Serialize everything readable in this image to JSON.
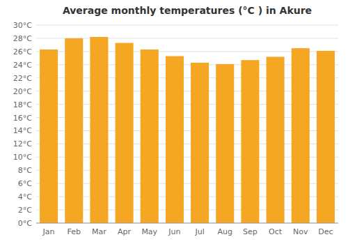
{
  "chart_data": {
    "type": "bar",
    "title": "Average monthly temperatures (°C ) in Akure",
    "categories": [
      "Jan",
      "Feb",
      "Mar",
      "Apr",
      "May",
      "Jun",
      "Jul",
      "Aug",
      "Sep",
      "Oct",
      "Nov",
      "Dec"
    ],
    "values": [
      26.3,
      28.0,
      28.2,
      27.3,
      26.3,
      25.3,
      24.3,
      24.1,
      24.7,
      25.2,
      26.5,
      26.1
    ],
    "color": "#F5A623",
    "ylim": [
      0,
      30
    ],
    "yticks": [
      {
        "value": 0,
        "label": "0°C"
      },
      {
        "value": 2,
        "label": "2°C"
      },
      {
        "value": 4,
        "label": "4°C"
      },
      {
        "value": 6,
        "label": "6°C"
      },
      {
        "value": 8,
        "label": "8°C"
      },
      {
        "value": 10,
        "label": "10°C"
      },
      {
        "value": 12,
        "label": "12°C"
      },
      {
        "value": 14,
        "label": "14°C"
      },
      {
        "value": 16,
        "label": "16°C"
      },
      {
        "value": 18,
        "label": "18°C"
      },
      {
        "value": 20,
        "label": "20°C"
      },
      {
        "value": 22,
        "label": "22°C"
      },
      {
        "value": 24,
        "label": "24°C"
      },
      {
        "value": 26,
        "label": "26°C"
      },
      {
        "value": 28,
        "label": "28°C"
      },
      {
        "value": 30,
        "label": "30°C"
      }
    ],
    "grid": true
  }
}
